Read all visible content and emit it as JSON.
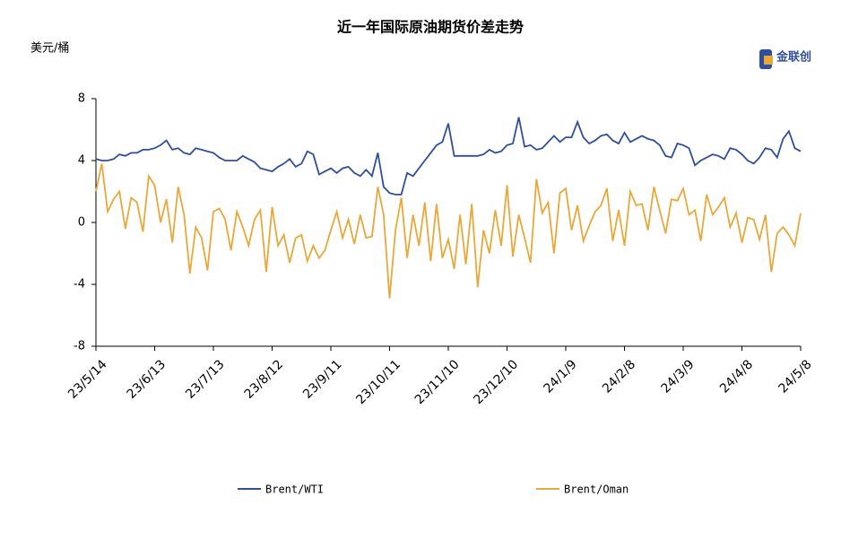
{
  "chart_data": {
    "type": "line",
    "title": "近一年国际原油期货价差走势",
    "y_label": "美元/桶",
    "watermark": "金联创",
    "categories": [
      "23/5/14",
      null,
      null,
      null,
      null,
      null,
      null,
      null,
      null,
      null,
      "23/6/13",
      null,
      null,
      null,
      null,
      null,
      null,
      null,
      null,
      null,
      "23/7/13",
      null,
      null,
      null,
      null,
      null,
      null,
      null,
      null,
      null,
      "23/8/12",
      null,
      null,
      null,
      null,
      null,
      null,
      null,
      null,
      null,
      "23/9/11",
      null,
      null,
      null,
      null,
      null,
      null,
      null,
      null,
      null,
      "23/10/11",
      null,
      null,
      null,
      null,
      null,
      null,
      null,
      null,
      null,
      "23/11/10",
      null,
      null,
      null,
      null,
      null,
      null,
      null,
      null,
      null,
      "23/12/10",
      null,
      null,
      null,
      null,
      null,
      null,
      null,
      null,
      null,
      "24/1/9",
      null,
      null,
      null,
      null,
      null,
      null,
      null,
      null,
      null,
      "24/2/8",
      null,
      null,
      null,
      null,
      null,
      null,
      null,
      null,
      null,
      "24/3/9",
      null,
      null,
      null,
      null,
      null,
      null,
      null,
      null,
      null,
      "24/4/8",
      null,
      null,
      null,
      null,
      null,
      null,
      null,
      null,
      null,
      "24/5/8"
    ],
    "series": [
      {
        "name": "Brent/WTI",
        "color": "#2f4e9e",
        "values": [
          4.1,
          4.0,
          4.0,
          4.1,
          4.4,
          4.3,
          4.5,
          4.5,
          4.7,
          4.7,
          4.8,
          5.0,
          5.3,
          4.7,
          4.8,
          4.5,
          4.4,
          4.8,
          4.7,
          4.6,
          4.5,
          4.2,
          4.0,
          4.0,
          4.0,
          4.3,
          4.1,
          3.9,
          3.5,
          3.4,
          3.3,
          3.6,
          3.8,
          4.1,
          3.6,
          3.8,
          4.6,
          4.4,
          3.1,
          3.3,
          3.5,
          3.2,
          3.5,
          3.6,
          3.2,
          3.0,
          3.4,
          3.0,
          4.5,
          2.3,
          1.9,
          1.8,
          1.8,
          3.2,
          3.0,
          3.5,
          4.0,
          4.5,
          5.0,
          5.2,
          6.4,
          4.3,
          4.3,
          4.3,
          4.3,
          4.3,
          4.4,
          4.7,
          4.5,
          4.6,
          5.0,
          5.1,
          6.8,
          4.9,
          5.0,
          4.7,
          4.8,
          5.2,
          5.6,
          5.2,
          5.5,
          5.5,
          6.5,
          5.5,
          5.1,
          5.3,
          5.6,
          5.7,
          5.3,
          5.1,
          5.8,
          5.2,
          5.4,
          5.6,
          5.4,
          5.3,
          5.0,
          4.3,
          4.2,
          5.1,
          5.0,
          4.8,
          3.7,
          4.0,
          4.2,
          4.4,
          4.3,
          4.1,
          4.8,
          4.7,
          4.4,
          4.0,
          3.8,
          4.2,
          4.8,
          4.7,
          4.2,
          5.4,
          5.9,
          4.8,
          4.6
        ]
      },
      {
        "name": "Brent/Oman",
        "color": "#e8a83a",
        "values": [
          2.0,
          3.8,
          0.7,
          1.5,
          2.0,
          -0.4,
          1.6,
          1.3,
          -0.6,
          3.0,
          2.4,
          0.0,
          1.5,
          -1.3,
          2.3,
          0.5,
          -3.3,
          -0.3,
          -1.0,
          -3.1,
          0.7,
          0.9,
          0.2,
          -1.8,
          0.7,
          -0.3,
          -1.5,
          0.2,
          0.8,
          -3.2,
          1.0,
          -1.5,
          -0.8,
          -2.6,
          -1.0,
          -0.8,
          -2.5,
          -1.5,
          -2.3,
          -1.8,
          -0.5,
          0.7,
          -1.0,
          0.2,
          -1.4,
          0.5,
          -1.0,
          -0.9,
          2.3,
          0.5,
          -4.9,
          -0.5,
          1.6,
          -2.3,
          0.5,
          -1.5,
          1.3,
          -2.5,
          1.2,
          -2.3,
          -1.1,
          -3.0,
          0.5,
          -2.7,
          1.2,
          -4.2,
          -0.5,
          -2.0,
          0.8,
          -1.5,
          2.4,
          -2.2,
          0.5,
          -1.0,
          -2.6,
          2.8,
          0.6,
          1.3,
          -2.0,
          1.9,
          2.2,
          -0.5,
          1.1,
          -1.2,
          -0.2,
          0.7,
          1.1,
          2.2,
          -1.2,
          0.8,
          -1.5,
          2.0,
          1.1,
          1.2,
          -0.5,
          2.3,
          0.8,
          -0.7,
          1.5,
          1.4,
          2.2,
          0.5,
          0.8,
          -1.2,
          1.8,
          0.5,
          1.0,
          1.6,
          -0.3,
          0.6,
          -1.3,
          0.3,
          0.2,
          -1.1,
          0.5,
          -3.2,
          -0.7,
          -0.3,
          -0.8,
          -1.5,
          0.6
        ]
      }
    ],
    "ylim": [
      -8,
      8
    ],
    "yticks": [
      -8,
      -4,
      0,
      4,
      8
    ],
    "grid": false,
    "legend": "bottom"
  }
}
